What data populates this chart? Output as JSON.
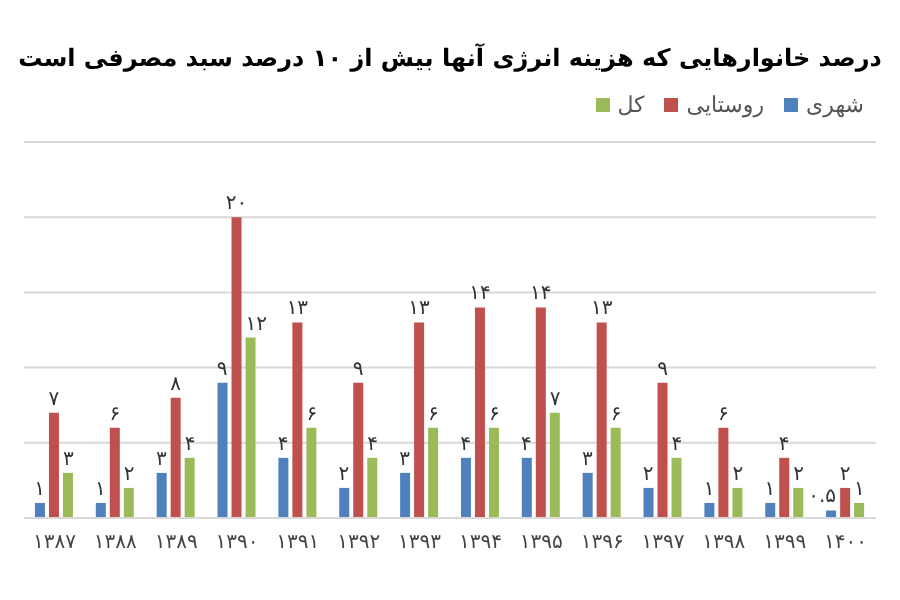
{
  "chart_data": {
    "type": "bar",
    "title": "درصد خانوارهایی که هزینه انرژی آنها بیش از ۱۰ درصد سبد مصرفی است",
    "categories": [
      "۱۳۸۷",
      "۱۳۸۸",
      "۱۳۸۹",
      "۱۳۹۰",
      "۱۳۹۱",
      "۱۳۹۲",
      "۱۳۹۳",
      "۱۳۹۴",
      "۱۳۹۵",
      "۱۳۹۶",
      "۱۳۹۷",
      "۱۳۹۸",
      "۱۳۹۹",
      "۱۴۰۰"
    ],
    "series": [
      {
        "name": "شهری",
        "color": "#4f81bd",
        "values": [
          1,
          1,
          3,
          9,
          4,
          2,
          3,
          4,
          4,
          3,
          2,
          1,
          1,
          0.5
        ],
        "value_labels": [
          "۱",
          "۱",
          "۳",
          "۹",
          "۴",
          "۲",
          "۳",
          "۴",
          "۴",
          "۳",
          "۲",
          "۱",
          "۱",
          "۰.۵"
        ]
      },
      {
        "name": "روستایی",
        "color": "#c0504d",
        "values": [
          7,
          6,
          8,
          20,
          13,
          9,
          13,
          14,
          14,
          13,
          9,
          6,
          4,
          2
        ],
        "value_labels": [
          "۷",
          "۶",
          "۸",
          "۲۰",
          "۱۳",
          "۹",
          "۱۳",
          "۱۴",
          "۱۴",
          "۱۳",
          "۹",
          "۶",
          "۴",
          "۲"
        ]
      },
      {
        "name": "کل",
        "color": "#9bbb59",
        "values": [
          3,
          2,
          4,
          12,
          6,
          4,
          6,
          6,
          7,
          6,
          4,
          2,
          2,
          1
        ],
        "value_labels": [
          "۳",
          "۲",
          "۴",
          "۱۲",
          "۶",
          "۴",
          "۶",
          "۶",
          "۷",
          "۶",
          "۴",
          "۲",
          "۲",
          "۱"
        ]
      }
    ],
    "ylim": [
      0,
      25
    ],
    "yticks": [
      {
        "value": 0,
        "label": null
      },
      {
        "value": 5,
        "label": null
      },
      {
        "value": 10,
        "label": null
      },
      {
        "value": 15,
        "label": null
      },
      {
        "value": 20,
        "label": null
      },
      {
        "value": 25,
        "label": null
      }
    ],
    "grid": "y",
    "legend": "top right",
    "tick_labels": "x"
  }
}
